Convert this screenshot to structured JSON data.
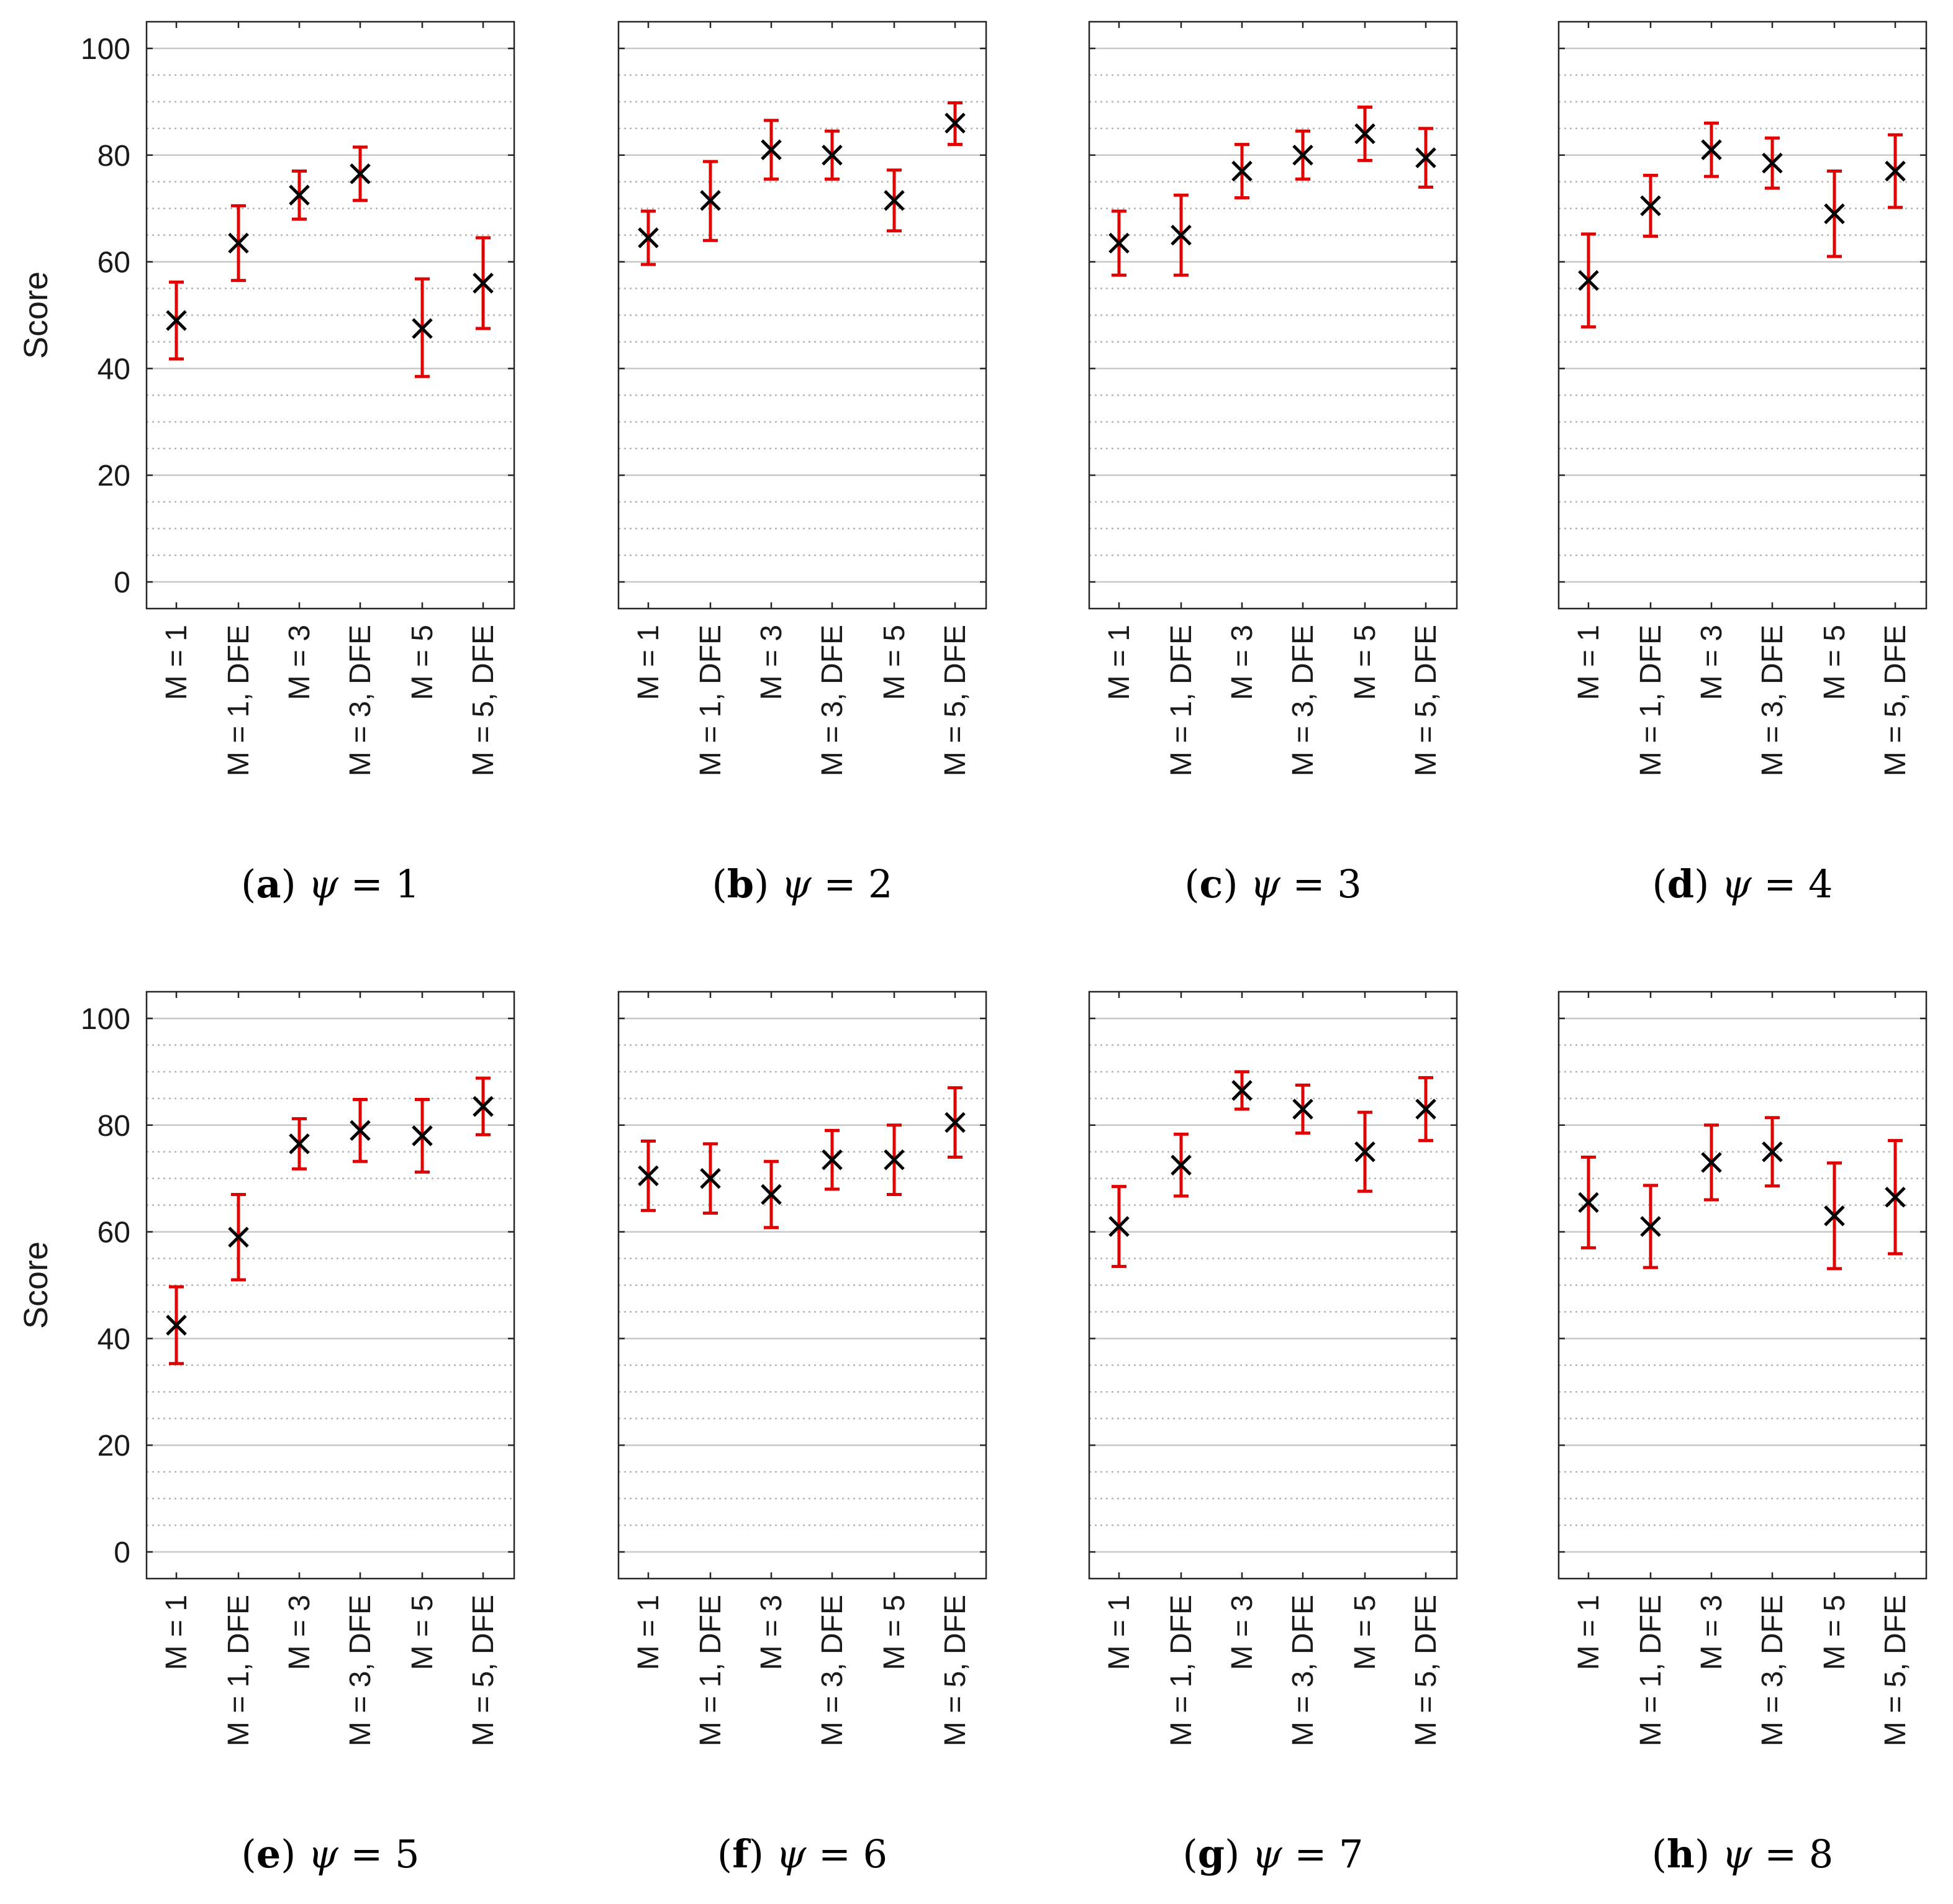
{
  "figure": {
    "ylabel": "Score",
    "caption_equals": "=",
    "psi_symbol": "ψ"
  },
  "colors": {
    "errorbar": "#e00000",
    "marker": "#000000",
    "major_grid": "#c8c8c8",
    "minor_grid": "#b4b4b4",
    "axis": "#262626"
  },
  "chart_data": [
    {
      "type": "errorbar",
      "panel": "a",
      "psi": "1",
      "categories": [
        "M = 1",
        "M = 1, DFE",
        "M = 3",
        "M = 3, DFE",
        "M = 5",
        "M = 5, DFE"
      ],
      "values": [
        49,
        63.5,
        72.5,
        76.5,
        47.5,
        56
      ],
      "lower": [
        41.8,
        56.5,
        68,
        71.5,
        38.5,
        47.5
      ],
      "upper": [
        56.2,
        70.5,
        77,
        81.5,
        56.8,
        64.5
      ],
      "yticks": [
        0,
        20,
        40,
        60,
        80,
        100
      ],
      "ylim": [
        -5,
        105
      ],
      "ylabel": "Score",
      "grid": "major solid every 20, minor dotted every 5"
    },
    {
      "type": "errorbar",
      "panel": "b",
      "psi": "2",
      "categories": [
        "M = 1",
        "M = 1, DFE",
        "M = 3",
        "M = 3, DFE",
        "M = 5",
        "M = 5, DFE"
      ],
      "values": [
        64.5,
        71.5,
        81,
        80,
        71.5,
        86
      ],
      "lower": [
        59.5,
        64,
        75.5,
        75.5,
        65.8,
        82
      ],
      "upper": [
        69.5,
        78.8,
        86.5,
        84.5,
        77.2,
        89.8
      ],
      "yticks": [
        0,
        20,
        40,
        60,
        80,
        100
      ],
      "ylim": [
        -5,
        105
      ],
      "ylabel": "",
      "grid": "major solid every 20, minor dotted every 5"
    },
    {
      "type": "errorbar",
      "panel": "c",
      "psi": "3",
      "categories": [
        "M = 1",
        "M = 1, DFE",
        "M = 3",
        "M = 3, DFE",
        "M = 5",
        "M = 5, DFE"
      ],
      "values": [
        63.5,
        65,
        77,
        80,
        84,
        79.5
      ],
      "lower": [
        57.5,
        57.5,
        72,
        75.5,
        79,
        74
      ],
      "upper": [
        69.5,
        72.5,
        82,
        84.5,
        89,
        85
      ],
      "yticks": [
        0,
        20,
        40,
        60,
        80,
        100
      ],
      "ylim": [
        -5,
        105
      ],
      "ylabel": "",
      "grid": "major solid every 20, minor dotted every 5"
    },
    {
      "type": "errorbar",
      "panel": "d",
      "psi": "4",
      "categories": [
        "M = 1",
        "M = 1, DFE",
        "M = 3",
        "M = 3, DFE",
        "M = 5",
        "M = 5, DFE"
      ],
      "values": [
        56.5,
        70.5,
        81,
        78.5,
        69,
        77
      ],
      "lower": [
        47.8,
        64.8,
        76,
        73.8,
        61,
        70.2
      ],
      "upper": [
        65.2,
        76.2,
        86,
        83.2,
        77,
        83.8
      ],
      "yticks": [
        0,
        20,
        40,
        60,
        80,
        100
      ],
      "ylim": [
        -5,
        105
      ],
      "ylabel": "",
      "grid": "major solid every 20, minor dotted every 5"
    },
    {
      "type": "errorbar",
      "panel": "e",
      "psi": "5",
      "categories": [
        "M = 1",
        "M = 1, DFE",
        "M = 3",
        "M = 3, DFE",
        "M = 5",
        "M = 5, DFE"
      ],
      "values": [
        42.5,
        59,
        76.5,
        79,
        78,
        83.5
      ],
      "lower": [
        35.3,
        51,
        71.8,
        73.2,
        71.2,
        78.2
      ],
      "upper": [
        49.7,
        67,
        81.2,
        84.8,
        84.8,
        88.8
      ],
      "yticks": [
        0,
        20,
        40,
        60,
        80,
        100
      ],
      "ylim": [
        -5,
        105
      ],
      "ylabel": "Score",
      "grid": "major solid every 20, minor dotted every 5"
    },
    {
      "type": "errorbar",
      "panel": "f",
      "psi": "6",
      "categories": [
        "M = 1",
        "M = 1, DFE",
        "M = 3",
        "M = 3, DFE",
        "M = 5",
        "M = 5, DFE"
      ],
      "values": [
        70.5,
        70,
        67,
        73.5,
        73.5,
        80.5
      ],
      "lower": [
        64,
        63.5,
        60.8,
        68,
        67,
        74
      ],
      "upper": [
        77,
        76.5,
        73.2,
        79,
        80,
        87
      ],
      "yticks": [
        0,
        20,
        40,
        60,
        80,
        100
      ],
      "ylim": [
        -5,
        105
      ],
      "ylabel": "",
      "grid": "major solid every 20, minor dotted every 5"
    },
    {
      "type": "errorbar",
      "panel": "g",
      "psi": "7",
      "categories": [
        "M = 1",
        "M = 1, DFE",
        "M = 3",
        "M = 3, DFE",
        "M = 5",
        "M = 5, DFE"
      ],
      "values": [
        61,
        72.5,
        86.5,
        83,
        75,
        83
      ],
      "lower": [
        53.5,
        66.7,
        83,
        78.5,
        67.6,
        77.1
      ],
      "upper": [
        68.5,
        78.3,
        90,
        87.5,
        82.4,
        88.9
      ],
      "yticks": [
        0,
        20,
        40,
        60,
        80,
        100
      ],
      "ylim": [
        -5,
        105
      ],
      "ylabel": "",
      "grid": "major solid every 20, minor dotted every 5"
    },
    {
      "type": "errorbar",
      "panel": "h",
      "psi": "8",
      "categories": [
        "M = 1",
        "M = 1, DFE",
        "M = 3",
        "M = 3, DFE",
        "M = 5",
        "M = 5, DFE"
      ],
      "values": [
        65.5,
        61,
        73,
        75,
        63,
        66.5
      ],
      "lower": [
        57,
        53.3,
        66,
        68.6,
        53.1,
        55.9
      ],
      "upper": [
        74,
        68.7,
        80,
        81.4,
        72.9,
        77.1
      ],
      "yticks": [
        0,
        20,
        40,
        60,
        80,
        100
      ],
      "ylim": [
        -5,
        105
      ],
      "ylabel": "",
      "grid": "major solid every 20, minor dotted every 5"
    }
  ]
}
